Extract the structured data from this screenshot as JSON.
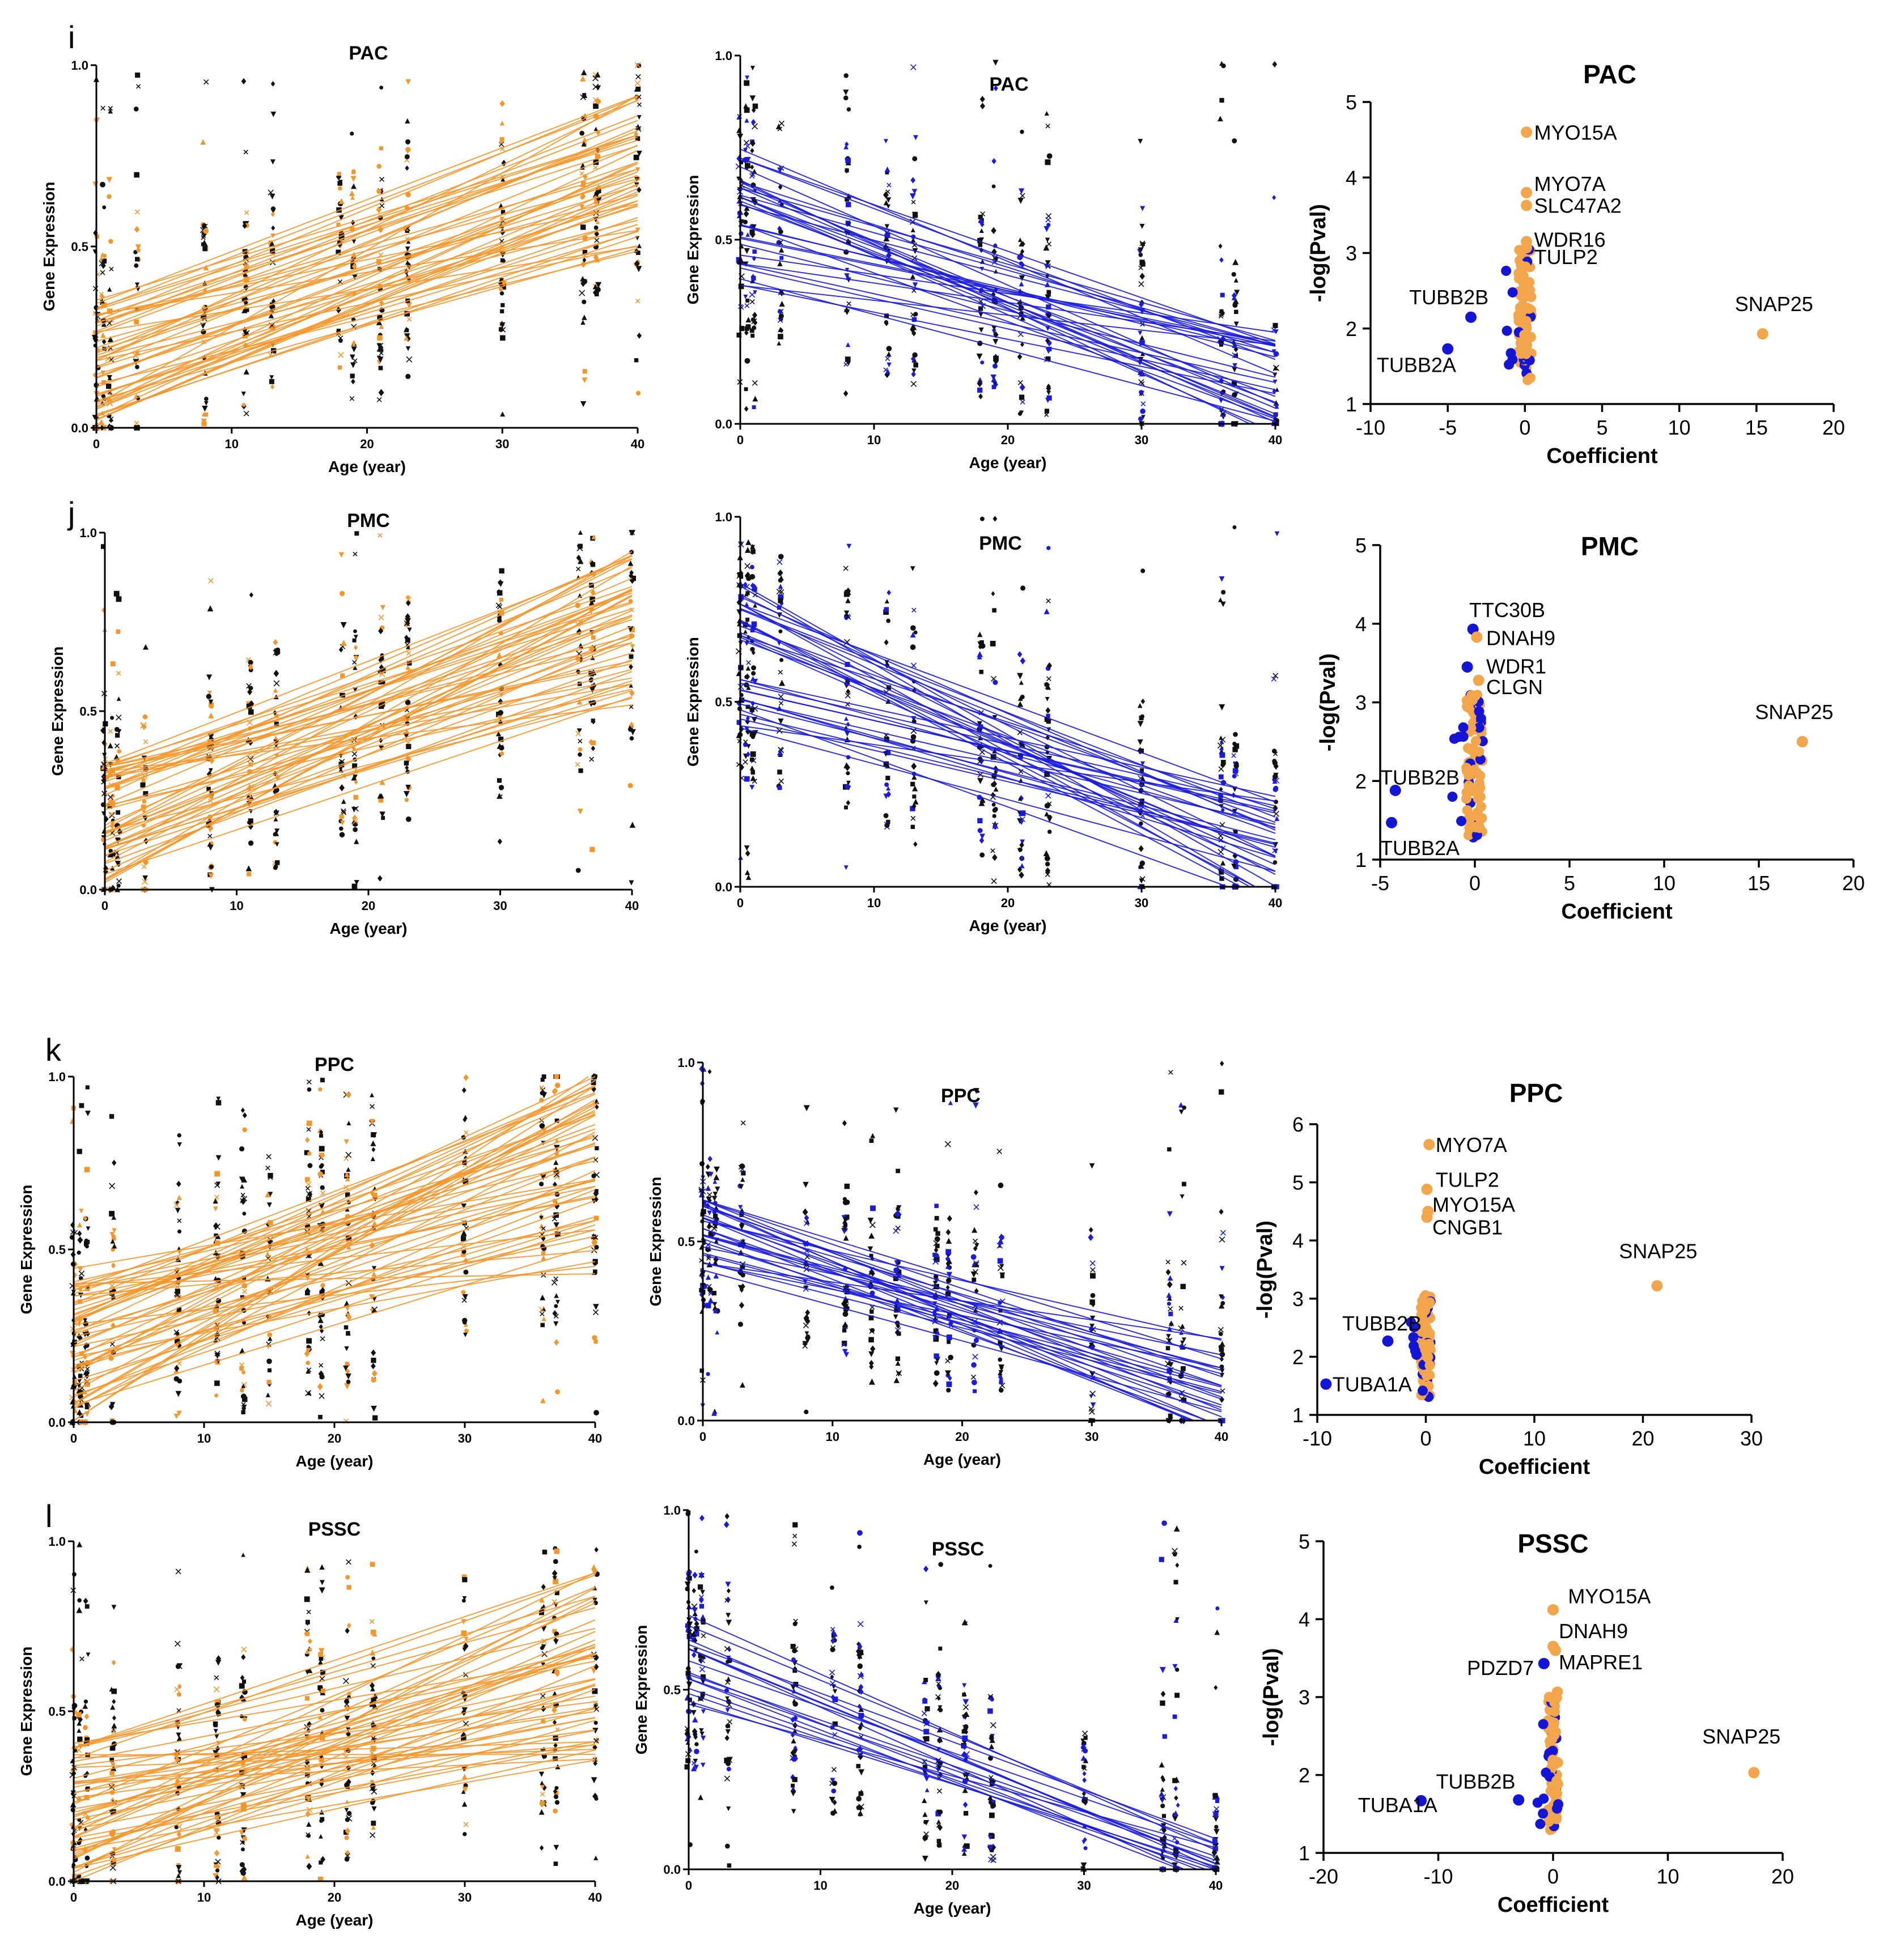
{
  "colors": {
    "up": "#F5962A",
    "down": "#1A1AE0",
    "volcano_up": "#F2A54A",
    "volcano_down": "#1515D8",
    "marker_dark": "#111111"
  },
  "chart_data": [
    {
      "id": "i-up",
      "type": "scatter",
      "panel_letter": "i",
      "title": "PAC",
      "direction": "up",
      "xlabel": "Age (year)",
      "ylabel": "Gene Expression",
      "xlim": [
        0,
        40
      ],
      "ylim": [
        0,
        1
      ],
      "xticks": [
        0,
        10,
        20,
        30,
        40
      ],
      "yticks": [
        0.0,
        0.5,
        1.0
      ],
      "sample_ages": [
        0,
        0.5,
        1,
        3,
        8,
        11,
        13,
        18,
        19,
        21,
        23,
        30,
        36,
        37,
        40
      ],
      "line_count": 48,
      "line_intercept_range": [
        0.02,
        0.36
      ],
      "line_end_range": [
        0.48,
        0.92
      ]
    },
    {
      "id": "i-down",
      "type": "scatter",
      "title": "PAC",
      "direction": "down",
      "xlabel": "Age (year)",
      "ylabel": "Gene Expression",
      "xlim": [
        0,
        40
      ],
      "ylim": [
        0,
        1
      ],
      "xticks": [
        0,
        10,
        20,
        30,
        40
      ],
      "yticks": [
        0.0,
        0.5,
        1.0
      ],
      "sample_ages": [
        0,
        0.5,
        1,
        3,
        8,
        11,
        13,
        18,
        19,
        21,
        23,
        30,
        36,
        37,
        40
      ],
      "line_count": 30,
      "line_intercept_range": [
        0.36,
        0.75
      ],
      "line_end_range": [
        -0.05,
        0.25
      ]
    },
    {
      "id": "i-volcano",
      "type": "scatter",
      "title": "PAC",
      "xlabel": "Coefficient",
      "ylabel": "-log(Pval)",
      "xlim": [
        -10,
        20
      ],
      "ylim": [
        1,
        5
      ],
      "xticks": [
        -10,
        -5,
        0,
        5,
        10,
        15,
        20
      ],
      "yticks": [
        1,
        2,
        3,
        4,
        5
      ],
      "points": [
        {
          "gene": "MYO15A",
          "x": 0.1,
          "y": 4.6,
          "dir": "up"
        },
        {
          "gene": "MYO7A",
          "x": 0.1,
          "y": 3.8,
          "dir": "up"
        },
        {
          "gene": "SLC47A2",
          "x": 0.1,
          "y": 3.63,
          "dir": "up"
        },
        {
          "gene": "WDR16",
          "x": 0.1,
          "y": 3.15,
          "dir": "up"
        },
        {
          "gene": "TULP2",
          "x": 0.1,
          "y": 3.07,
          "dir": "up"
        },
        {
          "gene": "TUBB2B",
          "x": -3.5,
          "y": 2.15,
          "dir": "down"
        },
        {
          "gene": "TUBB2A",
          "x": -5.0,
          "y": 1.73,
          "dir": "down"
        },
        {
          "gene": "SNAP25",
          "x": 15.4,
          "y": 1.93,
          "dir": "up"
        }
      ],
      "labels": [
        {
          "text": "MYO15A",
          "x": 0.6,
          "y": 4.6
        },
        {
          "text": "MYO7A",
          "x": 0.6,
          "y": 3.92
        },
        {
          "text": "SLC47A2",
          "x": 0.6,
          "y": 3.63
        },
        {
          "text": "WDR16",
          "x": 0.6,
          "y": 3.18
        },
        {
          "text": "TULP2",
          "x": 0.6,
          "y": 2.95
        },
        {
          "text": "TUBB2B",
          "x": -7.5,
          "y": 2.42
        },
        {
          "text": "TUBB2A",
          "x": -9.6,
          "y": 1.52
        },
        {
          "text": "SNAP25",
          "x": 13.6,
          "y": 2.33
        }
      ]
    },
    {
      "id": "j-up",
      "type": "scatter",
      "panel_letter": "j",
      "title": "PMC",
      "direction": "up",
      "xlabel": "Age (year)",
      "ylabel": "Gene Expression",
      "xlim": [
        0,
        40
      ],
      "ylim": [
        0,
        1
      ],
      "xticks": [
        0,
        10,
        20,
        30,
        40
      ],
      "yticks": [
        0.0,
        0.5,
        1.0
      ],
      "sample_ages": [
        0,
        0.5,
        1,
        3,
        8,
        11,
        13,
        18,
        19,
        21,
        23,
        30,
        36,
        37,
        40
      ],
      "line_count": 48,
      "line_intercept_range": [
        0.02,
        0.36
      ],
      "line_end_range": [
        0.5,
        0.96
      ]
    },
    {
      "id": "j-down",
      "type": "scatter",
      "title": "PMC",
      "direction": "down",
      "xlabel": "Age (year)",
      "ylabel": "Gene Expression",
      "xlim": [
        0,
        40
      ],
      "ylim": [
        0,
        1
      ],
      "xticks": [
        0,
        10,
        20,
        30,
        40
      ],
      "yticks": [
        0.0,
        0.5,
        1.0
      ],
      "sample_ages": [
        0,
        0.5,
        1,
        3,
        8,
        11,
        13,
        18,
        19,
        21,
        23,
        30,
        36,
        37,
        40
      ],
      "line_count": 32,
      "line_intercept_range": [
        0.4,
        0.82
      ],
      "line_end_range": [
        -0.05,
        0.25
      ]
    },
    {
      "id": "j-volcano",
      "type": "scatter",
      "title": "PMC",
      "xlabel": "Coefficient",
      "ylabel": "-log(Pval)",
      "xlim": [
        -5,
        20
      ],
      "ylim": [
        1,
        5
      ],
      "xticks": [
        -5,
        0,
        5,
        10,
        15,
        20
      ],
      "yticks": [
        1,
        2,
        3,
        4,
        5
      ],
      "points": [
        {
          "gene": "TTC30B",
          "x": -0.1,
          "y": 3.93,
          "dir": "down"
        },
        {
          "gene": "DNAH9",
          "x": 0.1,
          "y": 3.83,
          "dir": "up"
        },
        {
          "gene": "WDR1",
          "x": -0.4,
          "y": 3.45,
          "dir": "down"
        },
        {
          "gene": "CLGN",
          "x": 0.2,
          "y": 3.28,
          "dir": "up"
        },
        {
          "gene": "TUBB2B",
          "x": -4.2,
          "y": 1.88,
          "dir": "down"
        },
        {
          "gene": "TUBB2A",
          "x": -4.4,
          "y": 1.47,
          "dir": "down"
        },
        {
          "gene": "SNAP25",
          "x": 17.3,
          "y": 2.5,
          "dir": "up"
        }
      ],
      "labels": [
        {
          "text": "TTC30B",
          "x": -0.3,
          "y": 4.18
        },
        {
          "text": "DNAH9",
          "x": 0.6,
          "y": 3.82
        },
        {
          "text": "WDR1",
          "x": 0.6,
          "y": 3.46
        },
        {
          "text": "CLGN",
          "x": 0.6,
          "y": 3.2
        },
        {
          "text": "TUBB2B",
          "x": -5.0,
          "y": 2.05
        },
        {
          "text": "TUBB2A",
          "x": -5.0,
          "y": 1.15
        },
        {
          "text": "SNAP25",
          "x": 14.8,
          "y": 2.88
        }
      ]
    },
    {
      "id": "k-up",
      "type": "scatter",
      "panel_letter": "k",
      "title": "PPC",
      "direction": "up",
      "xlabel": "Age (year)",
      "ylabel": "Gene Expression",
      "xlim": [
        0,
        40
      ],
      "ylim": [
        0,
        1
      ],
      "xticks": [
        0,
        10,
        20,
        30,
        40
      ],
      "yticks": [
        0.0,
        0.5,
        1.0
      ],
      "sample_ages": [
        0,
        0.5,
        1,
        3,
        8,
        11,
        13,
        15,
        18,
        19,
        21,
        23,
        30,
        36,
        37,
        40
      ],
      "line_count": 52,
      "line_intercept_range": [
        0.0,
        0.46
      ],
      "line_end_range": [
        0.42,
        1.02
      ]
    },
    {
      "id": "k-down",
      "type": "scatter",
      "title": "PPC",
      "direction": "down",
      "xlabel": "Age (year)",
      "ylabel": "Gene Expression",
      "xlim": [
        0,
        40
      ],
      "ylim": [
        0,
        1
      ],
      "xticks": [
        0,
        10,
        20,
        30,
        40
      ],
      "yticks": [
        0.0,
        0.5,
        1.0
      ],
      "sample_ages": [
        0,
        0.5,
        1,
        3,
        8,
        11,
        13,
        15,
        18,
        19,
        21,
        23,
        30,
        36,
        37,
        40
      ],
      "line_count": 26,
      "line_intercept_range": [
        0.42,
        0.62
      ],
      "line_end_range": [
        -0.05,
        0.24
      ]
    },
    {
      "id": "k-volcano",
      "type": "scatter",
      "title": "PPC",
      "xlabel": "Coefficient",
      "ylabel": "-log(Pval)",
      "xlim": [
        -10,
        30
      ],
      "ylim": [
        1,
        6
      ],
      "xticks": [
        -10,
        0,
        10,
        20,
        30
      ],
      "yticks": [
        1,
        2,
        3,
        4,
        5,
        6
      ],
      "points": [
        {
          "gene": "MYO7A",
          "x": 0.3,
          "y": 5.65,
          "dir": "up"
        },
        {
          "gene": "TULP2",
          "x": 0.1,
          "y": 4.88,
          "dir": "up"
        },
        {
          "gene": "MYO15A",
          "x": 0.2,
          "y": 4.5,
          "dir": "up"
        },
        {
          "gene": "CNGB1",
          "x": 0.1,
          "y": 4.4,
          "dir": "up"
        },
        {
          "gene": "TUBB2B",
          "x": -3.5,
          "y": 2.27,
          "dir": "down"
        },
        {
          "gene": "TUBA1A",
          "x": -9.2,
          "y": 1.53,
          "dir": "down"
        },
        {
          "gene": "SNAP25",
          "x": 21.3,
          "y": 3.22,
          "dir": "up"
        }
      ],
      "labels": [
        {
          "text": "MYO7A",
          "x": 0.9,
          "y": 5.65
        },
        {
          "text": "TULP2",
          "x": 0.9,
          "y": 5.05
        },
        {
          "text": "MYO15A",
          "x": 0.6,
          "y": 4.62
        },
        {
          "text": "CNGB1",
          "x": 0.6,
          "y": 4.23
        },
        {
          "text": "TUBB2B",
          "x": -7.7,
          "y": 2.58
        },
        {
          "text": "TUBA1A",
          "x": -8.6,
          "y": 1.53
        },
        {
          "text": "SNAP25",
          "x": 17.8,
          "y": 3.82
        }
      ]
    },
    {
      "id": "l-up",
      "type": "scatter",
      "panel_letter": "l",
      "title": "PSSC",
      "direction": "up",
      "xlabel": "Age (year)",
      "ylabel": "Gene Expression",
      "xlim": [
        0,
        40
      ],
      "ylim": [
        0,
        1
      ],
      "xticks": [
        0,
        10,
        20,
        30,
        40
      ],
      "yticks": [
        0.0,
        0.5,
        1.0
      ],
      "sample_ages": [
        0,
        0.5,
        1,
        3,
        8,
        11,
        13,
        18,
        19,
        21,
        23,
        30,
        36,
        37,
        40
      ],
      "line_count": 50,
      "line_intercept_range": [
        0.0,
        0.42
      ],
      "line_end_range": [
        0.35,
        0.92
      ]
    },
    {
      "id": "l-down",
      "type": "scatter",
      "title": "PSSC",
      "direction": "down",
      "xlabel": "Age (year)",
      "ylabel": "Gene Expression",
      "xlim": [
        0,
        40
      ],
      "ylim": [
        0,
        1
      ],
      "xticks": [
        0,
        10,
        20,
        30,
        40
      ],
      "yticks": [
        0.0,
        0.5,
        1.0
      ],
      "sample_ages": [
        0,
        0.5,
        1,
        3,
        8,
        11,
        13,
        18,
        19,
        21,
        23,
        30,
        36,
        37,
        40
      ],
      "line_count": 16,
      "line_intercept_range": [
        0.4,
        0.72
      ],
      "line_end_range": [
        -0.05,
        0.12
      ]
    },
    {
      "id": "l-volcano",
      "type": "scatter",
      "title": "PSSC",
      "xlabel": "Coefficient",
      "ylabel": "-log(Pval)",
      "xlim": [
        -20,
        20
      ],
      "ylim": [
        1,
        5
      ],
      "xticks": [
        -20,
        -10,
        0,
        10,
        20
      ],
      "yticks": [
        1,
        2,
        3,
        4,
        5
      ],
      "points": [
        {
          "gene": "MYO15A",
          "x": 0.0,
          "y": 4.12,
          "dir": "up"
        },
        {
          "gene": "DNAH9",
          "x": 0.0,
          "y": 3.65,
          "dir": "up"
        },
        {
          "gene": "PDZD7",
          "x": -0.8,
          "y": 3.43,
          "dir": "down"
        },
        {
          "gene": "MAPRE1",
          "x": 0.2,
          "y": 3.6,
          "dir": "up"
        },
        {
          "gene": "TUBB2B",
          "x": -3.0,
          "y": 1.68,
          "dir": "down"
        },
        {
          "gene": "TUBA1A",
          "x": -11.5,
          "y": 1.67,
          "dir": "down"
        },
        {
          "gene": "SNAP25",
          "x": 17.5,
          "y": 2.03,
          "dir": "up"
        }
      ],
      "labels": [
        {
          "text": "MYO15A",
          "x": 1.3,
          "y": 4.3
        },
        {
          "text": "DNAH9",
          "x": 0.5,
          "y": 3.85
        },
        {
          "text": "PDZD7",
          "x": -7.5,
          "y": 3.38
        },
        {
          "text": "MAPRE1",
          "x": 0.5,
          "y": 3.45
        },
        {
          "text": "TUBB2B",
          "x": -10.2,
          "y": 1.92
        },
        {
          "text": "TUBA1A",
          "x": -17.0,
          "y": 1.62
        },
        {
          "text": "SNAP25",
          "x": 13.0,
          "y": 2.5
        }
      ]
    }
  ]
}
